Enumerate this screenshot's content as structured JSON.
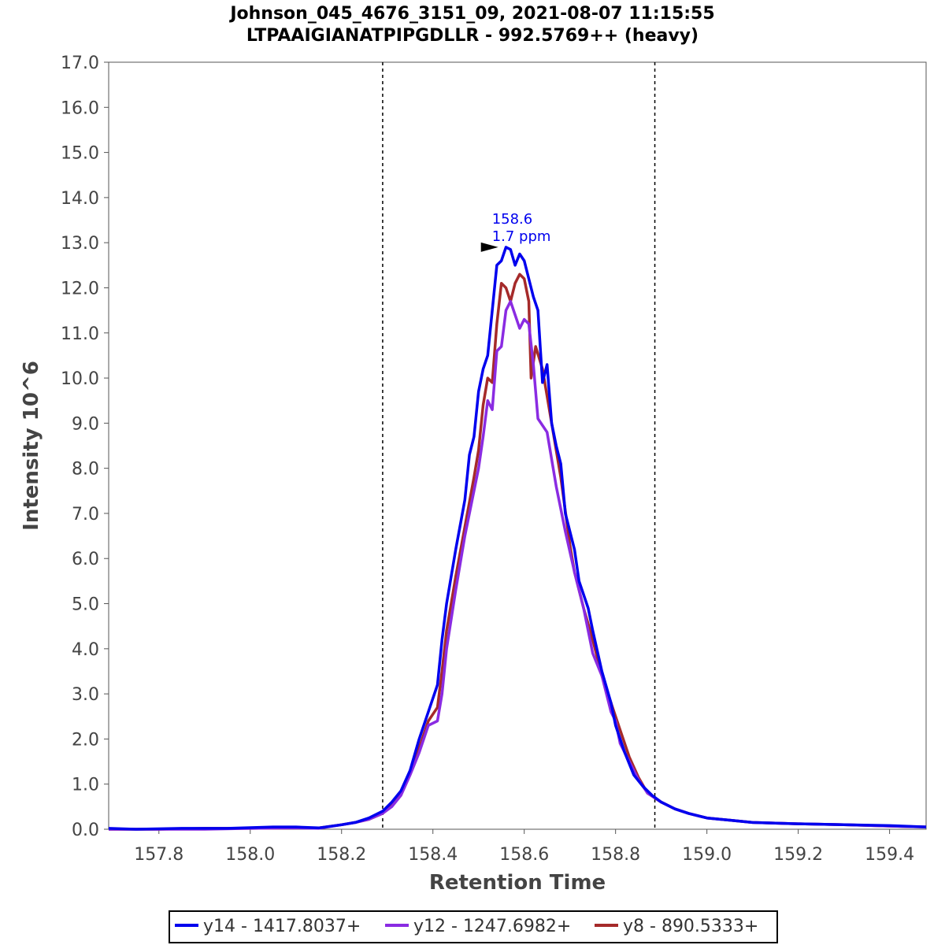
{
  "chart_data": {
    "type": "line",
    "title": "Johnson_045_4676_3151_09, 2021-08-07 11:15:55",
    "subtitle": "LTPAAIGIANATPIPGDLLR - 992.5769++ (heavy)",
    "xlabel": "Retention Time",
    "ylabel": "Intensity 10^6",
    "xlim": [
      157.69,
      159.48
    ],
    "ylim": [
      0,
      17
    ],
    "x_ticks": [
      "157.8",
      "158.0",
      "158.2",
      "158.4",
      "158.6",
      "158.8",
      "159.0",
      "159.2",
      "159.4"
    ],
    "y_ticks": [
      "0.0",
      "1.0",
      "2.0",
      "3.0",
      "4.0",
      "5.0",
      "6.0",
      "7.0",
      "8.0",
      "9.0",
      "10.0",
      "11.0",
      "12.0",
      "13.0",
      "14.0",
      "15.0",
      "16.0",
      "17.0"
    ],
    "grid": false,
    "legend_position": "bottom",
    "integration_bounds": [
      158.29,
      158.886
    ],
    "annotation": {
      "x": 158.55,
      "y": 12.9,
      "line1": "158.6",
      "line2": "1.7 ppm"
    },
    "series": [
      {
        "name": "y14 - 1417.8037+",
        "color": "#0000ee",
        "points": [
          [
            157.69,
            0.02
          ],
          [
            157.75,
            0.0
          ],
          [
            157.85,
            0.02
          ],
          [
            157.95,
            0.02
          ],
          [
            158.05,
            0.05
          ],
          [
            158.1,
            0.05
          ],
          [
            158.15,
            0.03
          ],
          [
            158.2,
            0.1
          ],
          [
            158.23,
            0.15
          ],
          [
            158.26,
            0.25
          ],
          [
            158.29,
            0.4
          ],
          [
            158.31,
            0.6
          ],
          [
            158.33,
            0.85
          ],
          [
            158.35,
            1.3
          ],
          [
            158.37,
            2.0
          ],
          [
            158.39,
            2.6
          ],
          [
            158.41,
            3.2
          ],
          [
            158.42,
            4.2
          ],
          [
            158.43,
            5.0
          ],
          [
            158.45,
            6.2
          ],
          [
            158.47,
            7.3
          ],
          [
            158.48,
            8.3
          ],
          [
            158.49,
            8.7
          ],
          [
            158.5,
            9.7
          ],
          [
            158.51,
            10.2
          ],
          [
            158.52,
            10.5
          ],
          [
            158.53,
            11.5
          ],
          [
            158.54,
            12.5
          ],
          [
            158.55,
            12.6
          ],
          [
            158.56,
            12.9
          ],
          [
            158.57,
            12.85
          ],
          [
            158.58,
            12.5
          ],
          [
            158.59,
            12.75
          ],
          [
            158.6,
            12.6
          ],
          [
            158.61,
            12.2
          ],
          [
            158.62,
            11.8
          ],
          [
            158.63,
            11.5
          ],
          [
            158.64,
            9.9
          ],
          [
            158.65,
            10.3
          ],
          [
            158.66,
            9.0
          ],
          [
            158.67,
            8.5
          ],
          [
            158.68,
            8.1
          ],
          [
            158.69,
            7.0
          ],
          [
            158.71,
            6.2
          ],
          [
            158.72,
            5.5
          ],
          [
            158.74,
            4.9
          ],
          [
            158.75,
            4.4
          ],
          [
            158.77,
            3.5
          ],
          [
            158.79,
            2.8
          ],
          [
            158.8,
            2.3
          ],
          [
            158.82,
            1.7
          ],
          [
            158.84,
            1.2
          ],
          [
            158.86,
            0.95
          ],
          [
            158.88,
            0.75
          ],
          [
            158.9,
            0.6
          ],
          [
            158.93,
            0.45
          ],
          [
            158.96,
            0.35
          ],
          [
            159.0,
            0.25
          ],
          [
            159.05,
            0.2
          ],
          [
            159.1,
            0.15
          ],
          [
            159.2,
            0.12
          ],
          [
            159.3,
            0.1
          ],
          [
            159.4,
            0.08
          ],
          [
            159.48,
            0.05
          ]
        ]
      },
      {
        "name": "y12 - 1247.6982+",
        "color": "#8a2be2",
        "points": [
          [
            157.69,
            0.0
          ],
          [
            157.8,
            0.0
          ],
          [
            157.9,
            0.0
          ],
          [
            158.0,
            0.02
          ],
          [
            158.1,
            0.03
          ],
          [
            158.15,
            0.02
          ],
          [
            158.2,
            0.1
          ],
          [
            158.23,
            0.15
          ],
          [
            158.26,
            0.22
          ],
          [
            158.29,
            0.35
          ],
          [
            158.31,
            0.5
          ],
          [
            158.33,
            0.75
          ],
          [
            158.35,
            1.2
          ],
          [
            158.37,
            1.7
          ],
          [
            158.39,
            2.3
          ],
          [
            158.41,
            2.4
          ],
          [
            158.42,
            3.0
          ],
          [
            158.43,
            4.0
          ],
          [
            158.45,
            5.3
          ],
          [
            158.47,
            6.5
          ],
          [
            158.49,
            7.5
          ],
          [
            158.5,
            8.0
          ],
          [
            158.51,
            8.7
          ],
          [
            158.52,
            9.5
          ],
          [
            158.53,
            9.3
          ],
          [
            158.54,
            10.6
          ],
          [
            158.55,
            10.7
          ],
          [
            158.56,
            11.5
          ],
          [
            158.57,
            11.7
          ],
          [
            158.58,
            11.4
          ],
          [
            158.59,
            11.1
          ],
          [
            158.6,
            11.3
          ],
          [
            158.61,
            11.2
          ],
          [
            158.62,
            10.3
          ],
          [
            158.63,
            9.1
          ],
          [
            158.65,
            8.8
          ],
          [
            158.67,
            7.6
          ],
          [
            158.69,
            6.6
          ],
          [
            158.71,
            5.7
          ],
          [
            158.73,
            4.9
          ],
          [
            158.75,
            3.9
          ],
          [
            158.77,
            3.4
          ],
          [
            158.79,
            2.6
          ],
          [
            158.8,
            2.4
          ],
          [
            158.81,
            1.9
          ],
          [
            158.83,
            1.5
          ],
          [
            158.85,
            1.1
          ],
          [
            158.87,
            0.8
          ],
          [
            158.9,
            0.6
          ],
          [
            158.93,
            0.45
          ],
          [
            158.96,
            0.35
          ],
          [
            159.0,
            0.25
          ],
          [
            159.05,
            0.2
          ],
          [
            159.1,
            0.15
          ],
          [
            159.2,
            0.12
          ],
          [
            159.3,
            0.1
          ],
          [
            159.4,
            0.07
          ],
          [
            159.48,
            0.05
          ]
        ]
      },
      {
        "name": "y8 - 890.5333+",
        "color": "#a52a2a",
        "points": [
          [
            157.69,
            0.0
          ],
          [
            157.8,
            0.0
          ],
          [
            157.9,
            0.02
          ],
          [
            158.0,
            0.02
          ],
          [
            158.1,
            0.03
          ],
          [
            158.15,
            0.03
          ],
          [
            158.2,
            0.1
          ],
          [
            158.23,
            0.15
          ],
          [
            158.26,
            0.22
          ],
          [
            158.29,
            0.35
          ],
          [
            158.31,
            0.55
          ],
          [
            158.33,
            0.8
          ],
          [
            158.35,
            1.25
          ],
          [
            158.37,
            1.8
          ],
          [
            158.39,
            2.4
          ],
          [
            158.41,
            2.7
          ],
          [
            158.42,
            3.5
          ],
          [
            158.43,
            4.4
          ],
          [
            158.45,
            5.6
          ],
          [
            158.47,
            6.7
          ],
          [
            158.49,
            7.8
          ],
          [
            158.5,
            8.4
          ],
          [
            158.51,
            9.4
          ],
          [
            158.52,
            10.0
          ],
          [
            158.53,
            9.9
          ],
          [
            158.54,
            11.2
          ],
          [
            158.55,
            12.1
          ],
          [
            158.56,
            12.0
          ],
          [
            158.57,
            11.7
          ],
          [
            158.58,
            12.1
          ],
          [
            158.59,
            12.3
          ],
          [
            158.6,
            12.2
          ],
          [
            158.61,
            11.7
          ],
          [
            158.615,
            10.0
          ],
          [
            158.625,
            10.7
          ],
          [
            158.64,
            10.2
          ],
          [
            158.66,
            9.0
          ],
          [
            158.68,
            7.8
          ],
          [
            158.7,
            6.3
          ],
          [
            158.71,
            5.7
          ],
          [
            158.73,
            4.9
          ],
          [
            158.75,
            4.2
          ],
          [
            158.77,
            3.4
          ],
          [
            158.79,
            2.8
          ],
          [
            158.81,
            2.2
          ],
          [
            158.83,
            1.6
          ],
          [
            158.85,
            1.15
          ],
          [
            158.87,
            0.8
          ],
          [
            158.9,
            0.6
          ],
          [
            158.93,
            0.45
          ],
          [
            158.96,
            0.35
          ],
          [
            159.0,
            0.25
          ],
          [
            159.05,
            0.2
          ],
          [
            159.1,
            0.15
          ],
          [
            159.2,
            0.12
          ],
          [
            159.3,
            0.1
          ],
          [
            159.4,
            0.07
          ],
          [
            159.48,
            0.05
          ]
        ]
      }
    ]
  }
}
